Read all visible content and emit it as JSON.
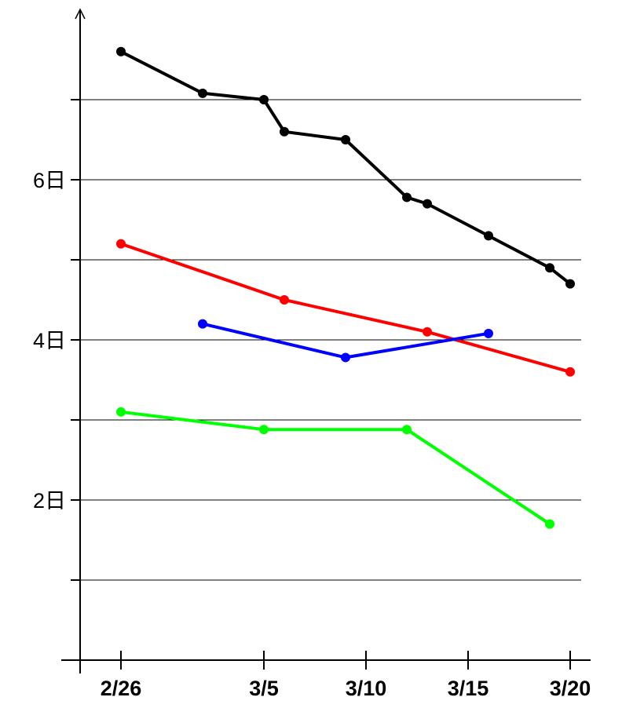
{
  "chart_data": {
    "type": "line",
    "title": "",
    "xlabel": "",
    "ylabel": "",
    "x_ticks": [
      {
        "value": "2/26",
        "label": "2/26"
      },
      {
        "value": "3/5",
        "label": "3/5"
      },
      {
        "value": "3/10",
        "label": "3/10"
      },
      {
        "value": "3/15",
        "label": "3/15"
      },
      {
        "value": "3/20",
        "label": "3/20"
      }
    ],
    "xlim": [
      "2/24",
      "3/21"
    ],
    "y_ticks": [
      {
        "value": 2,
        "label": "2日"
      },
      {
        "value": 4,
        "label": "4日"
      },
      {
        "value": 6,
        "label": "6日"
      }
    ],
    "y_gridlines": [
      1,
      2,
      3,
      4,
      5,
      6,
      7
    ],
    "ylim": [
      0,
      8
    ],
    "grid": "horizontal",
    "series": [
      {
        "color": "#000000",
        "points": [
          {
            "x": "2/26",
            "y": 7.6
          },
          {
            "x": "3/2",
            "y": 7.08
          },
          {
            "x": "3/5",
            "y": 7.0
          },
          {
            "x": "3/6",
            "y": 6.6
          },
          {
            "x": "3/9",
            "y": 6.5
          },
          {
            "x": "3/12",
            "y": 5.78
          },
          {
            "x": "3/13",
            "y": 5.7
          },
          {
            "x": "3/16",
            "y": 5.3
          },
          {
            "x": "3/19",
            "y": 4.9
          },
          {
            "x": "3/20",
            "y": 4.7
          }
        ]
      },
      {
        "color": "#ff0000",
        "points": [
          {
            "x": "2/26",
            "y": 5.2
          },
          {
            "x": "3/6",
            "y": 4.5
          },
          {
            "x": "3/13",
            "y": 4.1
          },
          {
            "x": "3/20",
            "y": 3.6
          }
        ]
      },
      {
        "color": "#0000ff",
        "points": [
          {
            "x": "3/2",
            "y": 4.2
          },
          {
            "x": "3/9",
            "y": 3.78
          },
          {
            "x": "3/16",
            "y": 4.08
          }
        ]
      },
      {
        "color": "#00ff00",
        "points": [
          {
            "x": "2/26",
            "y": 3.1
          },
          {
            "x": "3/5",
            "y": 2.88
          },
          {
            "x": "3/12",
            "y": 2.88
          },
          {
            "x": "3/19",
            "y": 1.7
          }
        ]
      }
    ]
  }
}
